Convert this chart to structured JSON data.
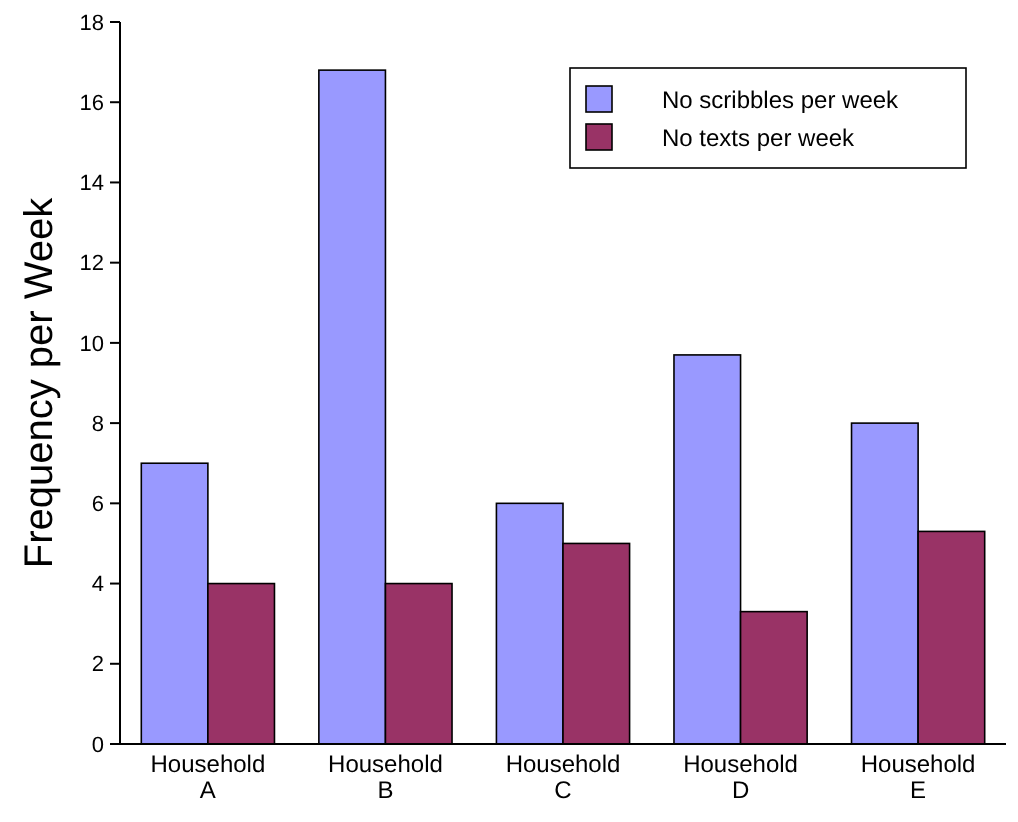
{
  "chart_data": {
    "type": "bar",
    "ylabel": "Frequency per Week",
    "categories": [
      "Household A",
      "Household B",
      "Household C",
      "Household D",
      "Household E"
    ],
    "series": [
      {
        "name": "No scribbles per week",
        "color": "#9999ff",
        "values": [
          7,
          16.8,
          6,
          9.7,
          8
        ]
      },
      {
        "name": "No texts per week",
        "color": "#993366",
        "values": [
          4,
          4,
          5,
          3.3,
          5.3
        ]
      }
    ],
    "ylim": [
      0,
      18
    ],
    "yticks": [
      0,
      2,
      4,
      6,
      8,
      10,
      12,
      14,
      16,
      18
    ],
    "grid": false,
    "legend": "top right"
  }
}
